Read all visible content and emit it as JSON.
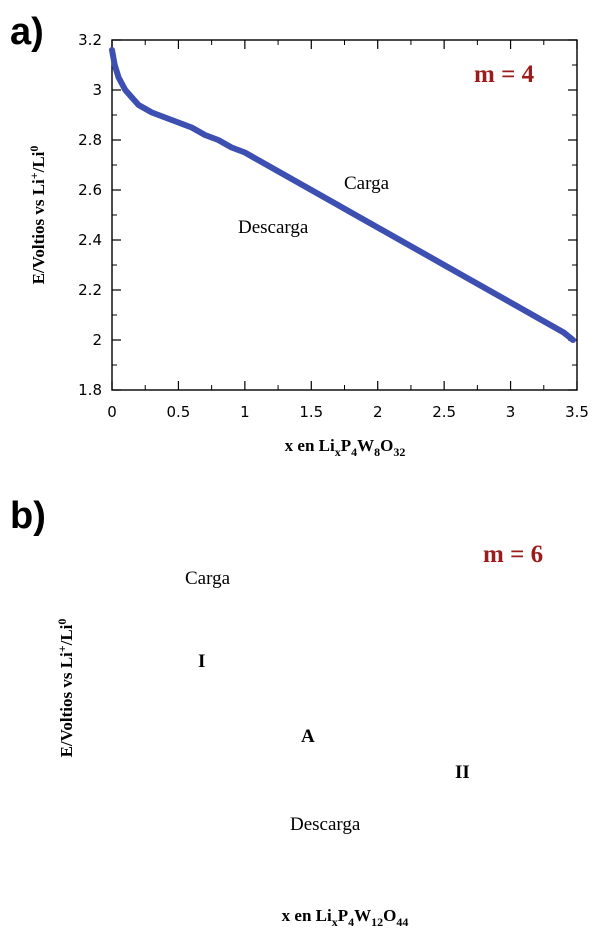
{
  "chart_data": [
    {
      "type": "line",
      "panel_label": "a)",
      "annotation_m": "m = 4",
      "annotation_color": "#9b1c1c",
      "series_color": "#3d4fb0",
      "xlabel": {
        "pre": "x en Li",
        "sub1": "x",
        "mid1": "P",
        "sub2": "4",
        "mid2": "W",
        "sub3": "8",
        "mid3": "O",
        "sub4": "32"
      },
      "ylabel": {
        "pre": "E/Voltios vs Li",
        "sup1": "+",
        "mid": "/Li",
        "sup2": "0"
      },
      "xlim": [
        0,
        3.5
      ],
      "ylim": [
        1.8,
        3.2
      ],
      "xticks": [
        "0",
        "0.5",
        "1",
        "1.5",
        "2",
        "2.5",
        "3",
        "3.5"
      ],
      "yticks": [
        "1.8",
        "2",
        "2.2",
        "2.4",
        "2.6",
        "2.8",
        "3",
        "3.2"
      ],
      "text_labels": {
        "charge": "Carga",
        "discharge": "Descarga"
      },
      "series": [
        {
          "x": [
            0,
            0.02,
            0.05,
            0.1,
            0.15,
            0.2,
            0.3,
            0.4,
            0.5,
            0.6,
            0.7,
            0.8,
            0.9,
            1.0,
            1.1,
            1.2,
            1.3,
            1.4,
            1.5,
            1.6,
            1.7,
            1.8,
            1.9,
            2.0,
            2.1,
            2.2,
            2.3,
            2.4,
            2.5,
            2.6,
            2.7,
            2.8,
            2.9,
            3.0,
            3.1,
            3.2,
            3.3,
            3.4,
            3.47
          ],
          "y": [
            3.16,
            3.1,
            3.05,
            3.0,
            2.97,
            2.94,
            2.91,
            2.89,
            2.87,
            2.85,
            2.82,
            2.8,
            2.77,
            2.75,
            2.72,
            2.69,
            2.66,
            2.63,
            2.6,
            2.57,
            2.54,
            2.51,
            2.48,
            2.45,
            2.42,
            2.39,
            2.36,
            2.33,
            2.3,
            2.27,
            2.24,
            2.21,
            2.18,
            2.15,
            2.12,
            2.09,
            2.06,
            2.03,
            2.0
          ]
        }
      ]
    },
    {
      "type": "line",
      "panel_label": "b)",
      "annotation_m": "m = 6",
      "annotation_color": "#9b1c1c",
      "xlabel": {
        "pre": "x en Li",
        "sub1": "x",
        "mid1": "P",
        "sub2": "4",
        "mid2": "W",
        "sub3": "12",
        "mid3": "O",
        "sub4": "44"
      },
      "ylabel": {
        "pre": "E/Voltios vs Li",
        "sup1": "+",
        "mid": "/Li",
        "sup2": "0"
      },
      "text_labels": {
        "charge": "Carga",
        "discharge": "Descarga",
        "region_I": "I",
        "region_A": "A",
        "region_II": "II"
      },
      "series": []
    }
  ]
}
